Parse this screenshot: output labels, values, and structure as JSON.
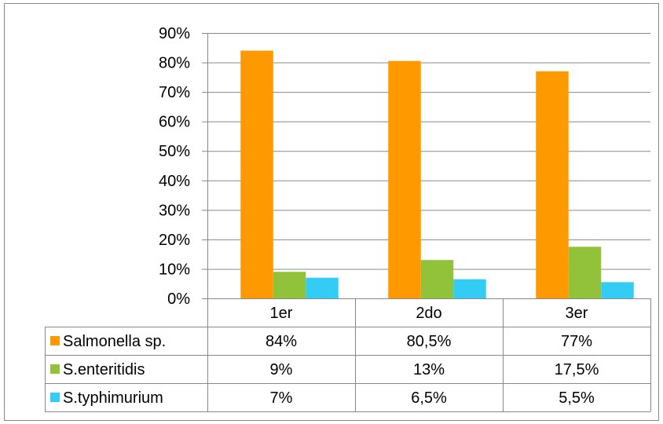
{
  "chart_data": {
    "type": "bar",
    "categories": [
      "1er",
      "2do",
      "3er"
    ],
    "series": [
      {
        "name": "Salmonella sp.",
        "color": "#FF9900",
        "values": [
          84,
          80.5,
          77
        ],
        "labels": [
          "84%",
          "80,5%",
          "77%"
        ]
      },
      {
        "name": "S.enteritidis",
        "color": "#92C13A",
        "values": [
          9,
          13,
          17.5
        ],
        "labels": [
          "9%",
          "13%",
          "17,5%"
        ]
      },
      {
        "name": "S.typhimurium",
        "color": "#33CCF5",
        "values": [
          7,
          6.5,
          5.5
        ],
        "labels": [
          "7%",
          "6,5%",
          "5,5%"
        ]
      }
    ],
    "ylim": [
      0,
      90
    ],
    "yticks": [
      "0%",
      "10%",
      "20%",
      "30%",
      "40%",
      "50%",
      "60%",
      "70%",
      "80%",
      "90%"
    ],
    "grid": true,
    "legend": "data-table"
  }
}
